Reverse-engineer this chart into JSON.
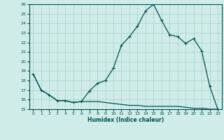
{
  "title": "",
  "xlabel": "Humidex (Indice chaleur)",
  "ylabel": "",
  "xlim": [
    -0.5,
    23.5
  ],
  "ylim": [
    15,
    26
  ],
  "yticks": [
    15,
    16,
    17,
    18,
    19,
    20,
    21,
    22,
    23,
    24,
    25,
    26
  ],
  "xticks": [
    0,
    1,
    2,
    3,
    4,
    5,
    6,
    7,
    8,
    9,
    10,
    11,
    12,
    13,
    14,
    15,
    16,
    17,
    18,
    19,
    20,
    21,
    22,
    23
  ],
  "bg_color": "#d0ece8",
  "grid_color": "#b0d8d2",
  "line_color": "#005050",
  "line1_x": [
    0,
    1,
    2,
    3,
    4,
    5,
    6,
    7,
    8,
    9,
    10,
    11,
    12,
    13,
    14,
    15,
    16,
    17,
    18,
    19,
    20,
    21,
    22,
    23
  ],
  "line1_y": [
    18.7,
    17.0,
    16.5,
    15.9,
    15.9,
    15.7,
    15.8,
    16.9,
    17.7,
    18.0,
    19.3,
    21.7,
    22.6,
    23.7,
    25.3,
    26.0,
    24.3,
    22.8,
    22.6,
    21.9,
    22.4,
    21.1,
    17.4,
    15.0
  ],
  "line2_x": [
    0,
    1,
    2,
    3,
    4,
    5,
    6,
    7,
    8,
    9,
    10,
    11,
    12,
    13,
    14,
    15,
    16,
    17,
    18,
    19,
    20,
    21,
    22,
    23
  ],
  "line2_y": [
    18.7,
    17.0,
    16.5,
    15.9,
    15.9,
    15.7,
    15.8,
    15.8,
    15.8,
    15.7,
    15.6,
    15.5,
    15.4,
    15.4,
    15.3,
    15.3,
    15.3,
    15.3,
    15.3,
    15.2,
    15.1,
    15.1,
    15.0,
    15.0
  ]
}
